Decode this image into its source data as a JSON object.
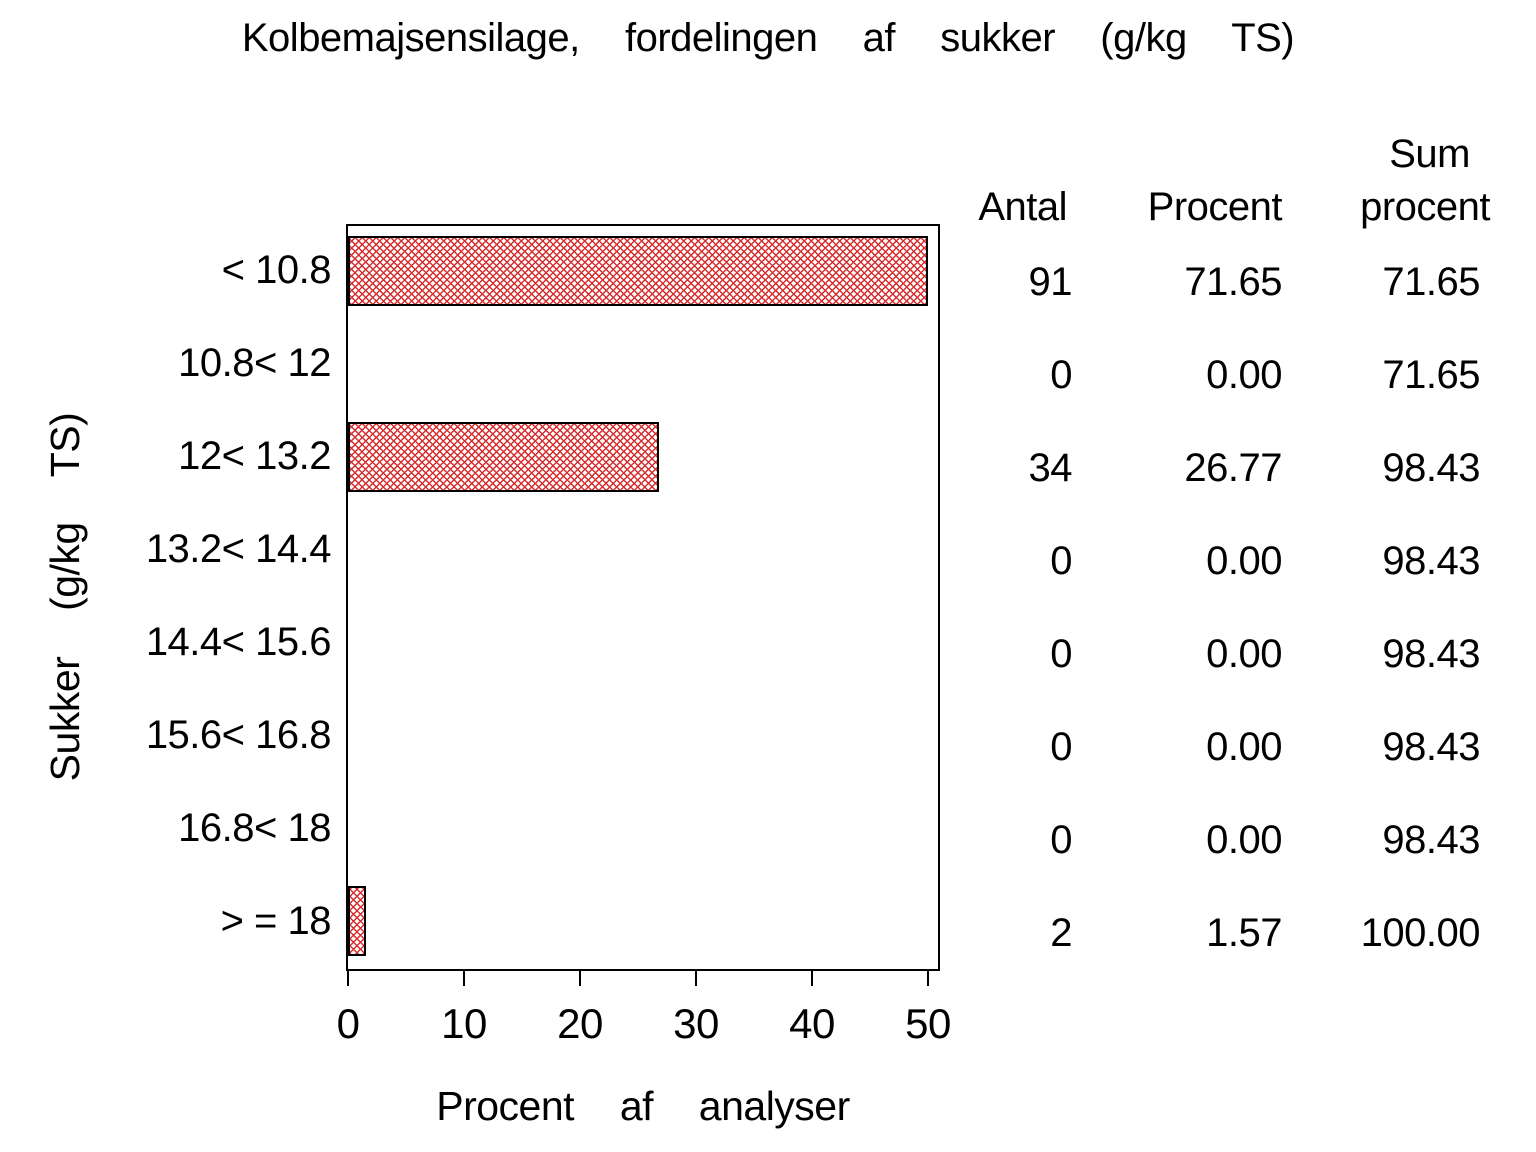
{
  "title": "Kolbemajsensilage,  fordelingen  af  sukker  (g/kg  TS)",
  "axes": {
    "y_label": "Sukker  (g/kg  TS)",
    "x_label": "Procent  af  analyser",
    "x_ticks": [
      "0",
      "10",
      "20",
      "30",
      "40",
      "50"
    ]
  },
  "table_headers": {
    "antal": "Antal",
    "procent": "Procent",
    "sum_line1": "Sum",
    "sum_line2": "procent"
  },
  "colors": {
    "bar_hatch": "#d92c2c",
    "bar_border": "#000000",
    "frame": "#000000",
    "text": "#000000"
  },
  "chart_data": {
    "type": "bar",
    "orientation": "horizontal",
    "title": "Kolbemajsensilage, fordelingen af sukker (g/kg TS)",
    "xlabel": "Procent af analyser",
    "ylabel": "Sukker (g/kg TS)",
    "axis_max": 50,
    "xlim": [
      0,
      50
    ],
    "x_ticks": [
      0,
      10,
      20,
      30,
      40,
      50
    ],
    "grid": false,
    "note": "bar for 71.65 % is clipped at the axis maximum of 50",
    "categories": [
      "< 10.8",
      "10.8< 12",
      "12< 13.2",
      "13.2< 14.4",
      "14.4< 15.6",
      "15.6< 16.8",
      "16.8< 18",
      "> = 18"
    ],
    "series": [
      {
        "name": "Procent af analyser",
        "values": [
          71.65,
          0.0,
          26.77,
          0.0,
          0.0,
          0.0,
          0.0,
          1.57
        ]
      },
      {
        "name": "Antal",
        "values": [
          91,
          0,
          34,
          0,
          0,
          0,
          0,
          2
        ]
      },
      {
        "name": "Sum procent",
        "values": [
          71.65,
          71.65,
          98.43,
          98.43,
          98.43,
          98.43,
          98.43,
          100.0
        ]
      }
    ],
    "rows": [
      {
        "label": "< 10.8",
        "antal": "91",
        "procent": "71.65",
        "sum": "71.65",
        "value": 71.65
      },
      {
        "label": "10.8< 12",
        "antal": "0",
        "procent": "0.00",
        "sum": "71.65",
        "value": 0
      },
      {
        "label": "12< 13.2",
        "antal": "34",
        "procent": "26.77",
        "sum": "98.43",
        "value": 26.77
      },
      {
        "label": "13.2< 14.4",
        "antal": "0",
        "procent": "0.00",
        "sum": "98.43",
        "value": 0
      },
      {
        "label": "14.4< 15.6",
        "antal": "0",
        "procent": "0.00",
        "sum": "98.43",
        "value": 0
      },
      {
        "label": "15.6< 16.8",
        "antal": "0",
        "procent": "0.00",
        "sum": "98.43",
        "value": 0
      },
      {
        "label": "16.8< 18",
        "antal": "0",
        "procent": "0.00",
        "sum": "98.43",
        "value": 0
      },
      {
        "label": "> = 18",
        "antal": "2",
        "procent": "1.57",
        "sum": "100.00",
        "value": 1.57
      }
    ]
  }
}
